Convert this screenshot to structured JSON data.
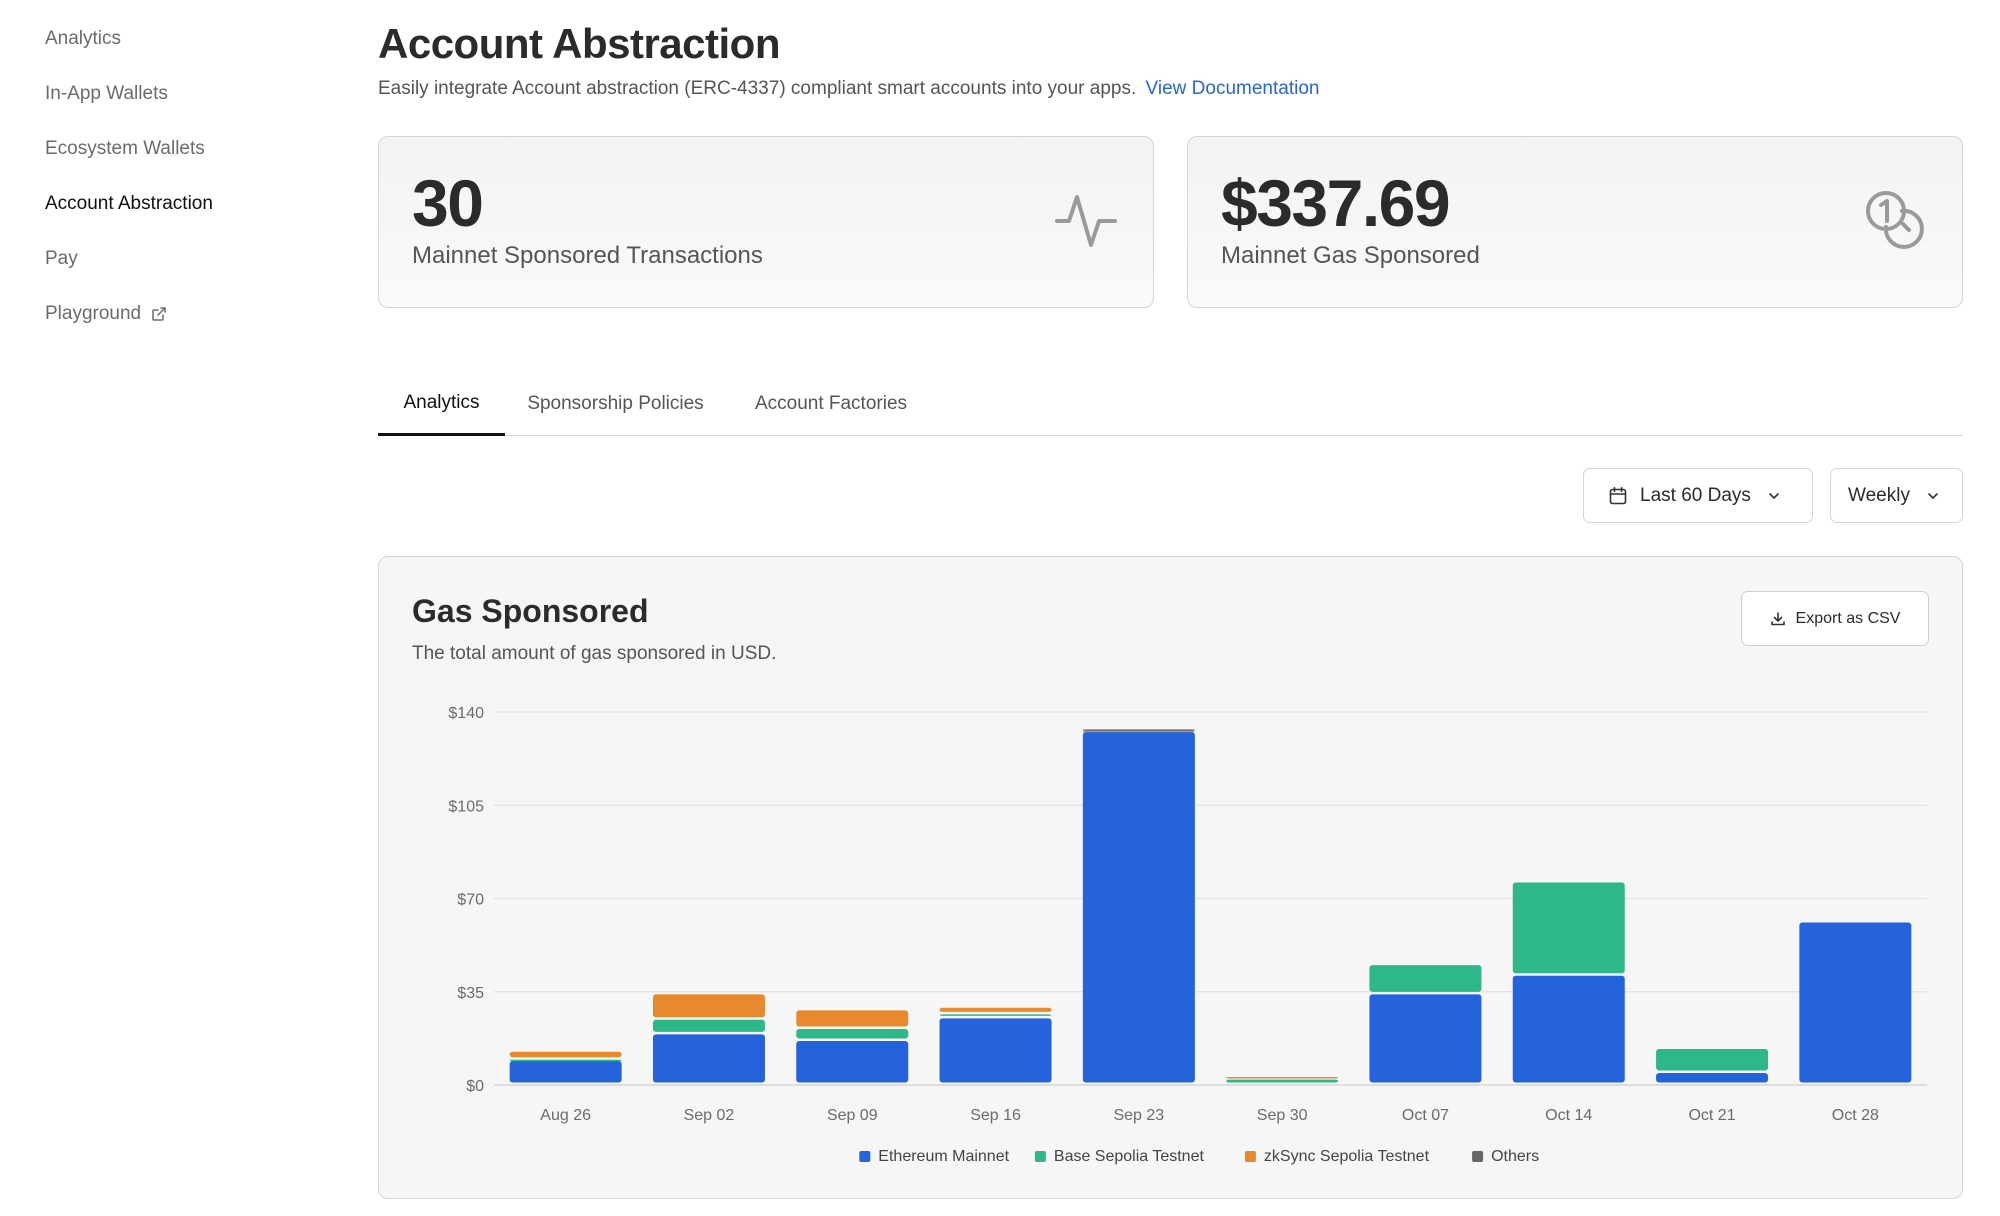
{
  "sidebar": {
    "items": [
      {
        "label": "Analytics",
        "active": false,
        "external": false
      },
      {
        "label": "In-App Wallets",
        "active": false,
        "external": false
      },
      {
        "label": "Ecosystem Wallets",
        "active": false,
        "external": false
      },
      {
        "label": "Account Abstraction",
        "active": true,
        "external": false
      },
      {
        "label": "Pay",
        "active": false,
        "external": false
      },
      {
        "label": "Playground",
        "active": false,
        "external": true
      }
    ]
  },
  "header": {
    "title": "Account Abstraction",
    "subtitle": "Easily integrate Account abstraction (ERC-4337) compliant smart accounts into your apps.",
    "doc_link": "View Documentation"
  },
  "stats": [
    {
      "value": "30",
      "label": "Mainnet Sponsored Transactions",
      "icon": "activity-icon"
    },
    {
      "value": "$337.69",
      "label": "Mainnet Gas Sponsored",
      "icon": "coins-icon"
    }
  ],
  "tabs": [
    {
      "label": "Analytics",
      "active": true
    },
    {
      "label": "Sponsorship Policies",
      "active": false
    },
    {
      "label": "Account Factories",
      "active": false
    }
  ],
  "filters": {
    "range": "Last 60 Days",
    "interval": "Weekly"
  },
  "chart": {
    "title": "Gas Sponsored",
    "subtitle": "The total amount of gas sponsored in USD.",
    "export_label": "Export as CSV"
  },
  "chart_data": {
    "type": "bar",
    "stacked": true,
    "title": "Gas Sponsored",
    "subtitle": "The total amount of gas sponsored in USD.",
    "categories": [
      "Aug 26",
      "Sep 02",
      "Sep 09",
      "Sep 16",
      "Sep 23",
      "Sep 30",
      "Oct 07",
      "Oct 14",
      "Oct 21",
      "Oct 28"
    ],
    "series": [
      {
        "name": "Ethereum Mainnet",
        "color": "#2563dc",
        "values": [
          9,
          19,
          16.5,
          25,
          132.5,
          0,
          34,
          41,
          4.5,
          61
        ]
      },
      {
        "name": "Base Sepolia Testnet",
        "color": "#2eb887",
        "values": [
          0.5,
          5.5,
          4.5,
          1.5,
          0,
          2,
          11,
          35,
          9,
          0
        ]
      },
      {
        "name": "zkSync Sepolia Testnet",
        "color": "#e8892e",
        "values": [
          3,
          9.5,
          7,
          2.5,
          0.5,
          1,
          0,
          0,
          0,
          0
        ]
      },
      {
        "name": "Others",
        "color": "#666666",
        "values": [
          0,
          0,
          0,
          0,
          0.5,
          0,
          0,
          0,
          0,
          0
        ]
      }
    ],
    "yticks": [
      "$0",
      "$35",
      "$70",
      "$105",
      "$140"
    ],
    "ytick_values": [
      0,
      35,
      70,
      105,
      140
    ],
    "ylim": [
      0,
      140
    ],
    "grid": true,
    "legend_position": "bottom-center"
  }
}
